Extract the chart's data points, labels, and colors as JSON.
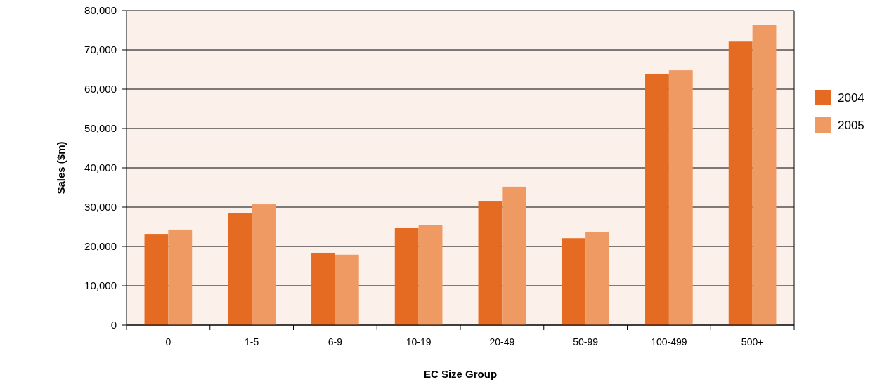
{
  "chart_data": {
    "type": "bar",
    "xlabel": "EC Size Group",
    "ylabel": "Sales ($m)",
    "categories": [
      "0",
      "1-5",
      "6-9",
      "10-19",
      "20-49",
      "50-99",
      "100-499",
      "500+"
    ],
    "series": [
      {
        "name": "2004",
        "color": "#e66b22",
        "values": [
          23200,
          28500,
          18400,
          24800,
          31600,
          22100,
          63900,
          72100
        ]
      },
      {
        "name": "2005",
        "color": "#f09a63",
        "values": [
          24300,
          30700,
          17900,
          25400,
          35200,
          23700,
          64800,
          76400
        ]
      }
    ],
    "ylim": [
      0,
      80000
    ],
    "yticks": [
      {
        "value": 0,
        "label": "0"
      },
      {
        "value": 10000,
        "label": "10,000"
      },
      {
        "value": 20000,
        "label": "20,000"
      },
      {
        "value": 30000,
        "label": "30,000"
      },
      {
        "value": 40000,
        "label": "40,000"
      },
      {
        "value": 50000,
        "label": "50,000"
      },
      {
        "value": 60000,
        "label": "60,000"
      },
      {
        "value": 70000,
        "label": "70,000"
      },
      {
        "value": 80000,
        "label": "80,000"
      }
    ],
    "grid": "y",
    "legend": "right"
  }
}
